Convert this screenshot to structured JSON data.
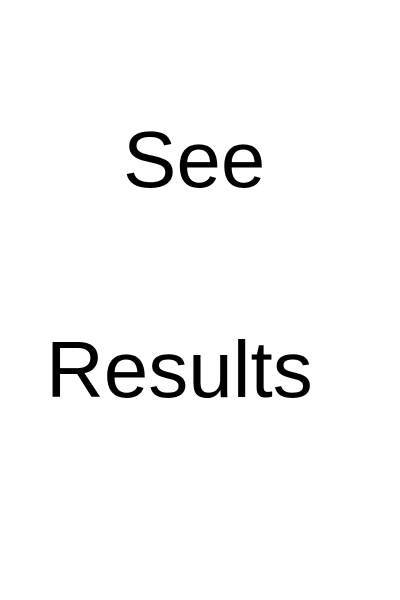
{
  "lines": [
    "See",
    "Results"
  ],
  "colors": {
    "background": "#ffffff",
    "text": "#000000"
  }
}
